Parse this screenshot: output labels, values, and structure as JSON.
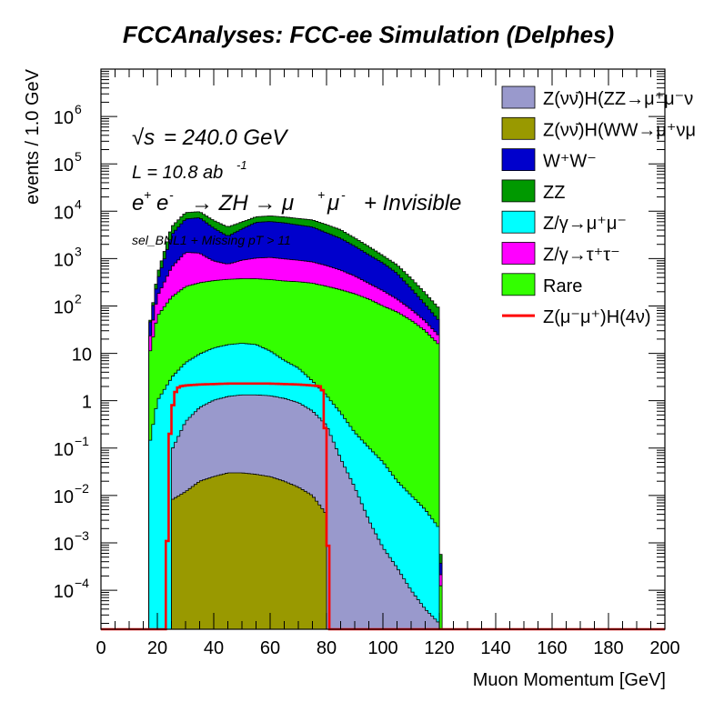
{
  "chart_data": {
    "type": "histogram",
    "stacked": true,
    "title": "FCCAnalyses: FCC-ee Simulation (Delphes)",
    "xlabel": "Muon Momentum [GeV]",
    "ylabel": "events / 1.0 GeV",
    "xlim": [
      0,
      200
    ],
    "ylim": [
      1.5e-05,
      10000000.0
    ],
    "yscale": "log",
    "bin_width": 1.0,
    "x_ticks": [
      "0",
      "20",
      "40",
      "60",
      "80",
      "100",
      "120",
      "140",
      "160",
      "180",
      "200"
    ],
    "y_ticks": [
      {
        "value": 1000000.0,
        "base": "10",
        "exp": "6"
      },
      {
        "value": 100000.0,
        "base": "10",
        "exp": "5"
      },
      {
        "value": 10000.0,
        "base": "10",
        "exp": "4"
      },
      {
        "value": 1000.0,
        "base": "10",
        "exp": "3"
      },
      {
        "value": 100.0,
        "base": "10",
        "exp": "2"
      },
      {
        "value": 10,
        "base": "10",
        "exp": ""
      },
      {
        "value": 1,
        "base": "1",
        "exp": ""
      },
      {
        "value": 0.1,
        "base": "10",
        "exp": "−1"
      },
      {
        "value": 0.01,
        "base": "10",
        "exp": "−2"
      },
      {
        "value": 0.001,
        "base": "10",
        "exp": "−3"
      },
      {
        "value": 0.0001,
        "base": "10",
        "exp": "−4"
      }
    ],
    "annotations": {
      "sqrt_s": "= 240.0 GeV",
      "lumi": "L = 10.8 ab",
      "lumi_exp": "-1",
      "process_a": "e",
      "process_b": "e",
      "process_c": "→ ZH → μ",
      "process_d": "μ",
      "process_e": "+ Invisible",
      "selection": "sel_BNL1 + Missing pT > 11"
    },
    "legend_position": "top-right",
    "stack_order_bottom_to_top": [
      "Z(νν̄)H(WW→μ⁺νμ⁻ν̄)",
      "Z(νν̄)H(ZZ→μ⁺μ⁻νν̄)",
      "Z/γ→μ⁺μ⁻",
      "Rare",
      "Z/γ→τ⁺τ⁻",
      "W⁺W⁻",
      "ZZ"
    ],
    "series": [
      {
        "name": "Z(νν̄)H(ZZ→μ⁺μ⁻νν̄)",
        "legend": "Z(νν̄)H(ZZ→μ⁺μ⁻ν",
        "color": "#9999cc",
        "x": [
          25,
          30,
          35,
          40,
          45,
          50,
          55,
          60,
          65,
          70,
          75,
          80,
          85,
          90,
          95,
          100,
          105,
          110,
          115,
          120,
          121
        ],
        "values": [
          0.08,
          0.35,
          0.7,
          1.0,
          1.2,
          1.3,
          1.3,
          1.25,
          1.1,
          0.9,
          0.6,
          0.3,
          0.06,
          0.015,
          0.003,
          0.0008,
          0.0003,
          0.0001,
          4e-05,
          2e-05,
          0
        ]
      },
      {
        "name": "Z(νν̄)H(WW→μ⁺νμ⁻ν̄)",
        "legend": "Z(νν̄)H(WW→μ⁺νμ",
        "color": "#999900",
        "x": [
          25,
          30,
          35,
          40,
          45,
          50,
          55,
          60,
          65,
          70,
          75,
          80,
          81
        ],
        "values": [
          0.008,
          0.012,
          0.02,
          0.025,
          0.03,
          0.03,
          0.028,
          0.025,
          0.02,
          0.015,
          0.01,
          0.004,
          0
        ]
      },
      {
        "name": "W⁺W⁻",
        "legend": "W⁺W⁻",
        "color": "#0000cc",
        "x": [
          17,
          20,
          25,
          30,
          35,
          40,
          45,
          50,
          55,
          60,
          65,
          70,
          75,
          80,
          85,
          90,
          95,
          100,
          105,
          110,
          115,
          120,
          121
        ],
        "values": [
          15,
          180,
          2500,
          5500,
          6000,
          3500,
          2200,
          3300,
          4800,
          5000,
          4700,
          4200,
          3800,
          2800,
          2100,
          1400,
          900,
          600,
          350,
          150,
          60,
          25,
          0
        ]
      },
      {
        "name": "ZZ",
        "legend": "ZZ",
        "color": "#009900",
        "x": [
          17,
          20,
          25,
          30,
          35,
          40,
          45,
          50,
          55,
          60,
          65,
          70,
          75,
          80,
          85,
          90,
          95,
          100,
          105,
          110,
          115,
          120,
          121
        ],
        "values": [
          2,
          120,
          1500,
          2500,
          2500,
          2000,
          1700,
          1700,
          1800,
          1900,
          1900,
          1900,
          1900,
          1700,
          1400,
          900,
          600,
          350,
          250,
          150,
          80,
          40,
          0
        ]
      },
      {
        "name": "Z/γ→μ⁺μ⁻",
        "legend": "Z/γ→μ⁺μ⁻",
        "color": "#00ffff",
        "x": [
          17,
          20,
          25,
          30,
          35,
          40,
          45,
          50,
          55,
          60,
          65,
          70,
          75,
          80,
          85,
          90,
          95,
          100,
          105,
          110,
          115,
          120,
          121
        ],
        "values": [
          0.1,
          1,
          3,
          6,
          9,
          12,
          14,
          15,
          14,
          10,
          6,
          4,
          2,
          1,
          0.5,
          0.2,
          0.1,
          0.05,
          0.02,
          0.01,
          0.005,
          0.002,
          0
        ]
      },
      {
        "name": "Z/γ→τ⁺τ⁻",
        "legend": "Z/γ→τ⁺τ⁻",
        "color": "#ff00ff",
        "x": [
          17,
          20,
          25,
          30,
          35,
          40,
          45,
          50,
          55,
          60,
          65,
          70,
          75,
          80,
          85,
          90,
          95,
          100,
          105,
          110,
          115,
          120,
          121
        ],
        "values": [
          8,
          100,
          500,
          1100,
          1000,
          550,
          400,
          550,
          650,
          700,
          650,
          600,
          550,
          450,
          350,
          250,
          160,
          110,
          65,
          35,
          18,
          8,
          0
        ]
      },
      {
        "name": "Rare",
        "legend": "Rare",
        "color": "#33ff00",
        "x": [
          17,
          20,
          25,
          30,
          35,
          40,
          45,
          50,
          55,
          60,
          65,
          70,
          75,
          80,
          85,
          90,
          95,
          100,
          105,
          110,
          115,
          120,
          121
        ],
        "values": [
          8,
          60,
          150,
          250,
          300,
          330,
          350,
          360,
          360,
          350,
          330,
          320,
          300,
          260,
          220,
          180,
          140,
          100,
          75,
          50,
          30,
          15,
          0
        ]
      },
      {
        "name": "Z(μ⁻μ⁺)H(4ν)",
        "legend": "Z(μ⁻μ⁺)H(4ν)",
        "color": "#ff0000",
        "style": "line",
        "x": [
          0,
          23,
          24,
          25,
          26,
          27,
          28,
          30,
          35,
          40,
          45,
          50,
          55,
          60,
          65,
          70,
          75,
          78,
          79,
          80,
          81,
          200
        ],
        "values": [
          1.5e-05,
          1.5e-05,
          0.08,
          0.5,
          1.3,
          1.8,
          2.0,
          2.1,
          2.2,
          2.25,
          2.3,
          2.3,
          2.3,
          2.3,
          2.25,
          2.2,
          2.1,
          2.0,
          1.4,
          0.05,
          1.5e-05,
          1.5e-05
        ]
      }
    ]
  }
}
